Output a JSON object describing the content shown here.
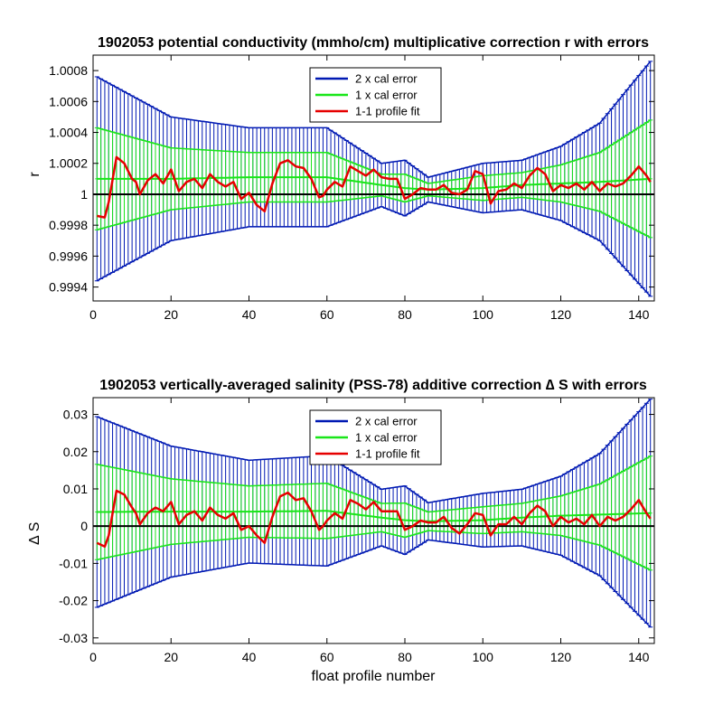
{
  "colors": {
    "cal2": "#0019b3",
    "cal1": "#19e619",
    "fit": "#e60000",
    "axis": "#000000"
  },
  "chart_data": [
    {
      "type": "line",
      "title": "1902053 potential conductivity (mmho/cm) multiplicative correction r with errors",
      "xlabel": "",
      "ylabel": "r",
      "xlim": [
        0,
        144
      ],
      "ylim": [
        0.99931,
        1.0009
      ],
      "xticks": [
        0,
        20,
        40,
        60,
        80,
        100,
        120,
        140
      ],
      "xtick_labels": [
        "0",
        "20",
        "40",
        "60",
        "80",
        "100",
        "120",
        "140"
      ],
      "yticks": [
        0.9994,
        0.9996,
        0.9998,
        1,
        1.0002,
        1.0004,
        1.0006,
        1.0008
      ],
      "ytick_labels": [
        "0.9994",
        "0.9996",
        "0.9998",
        "1",
        "1.0002",
        "1.0004",
        "1.0006",
        "1.0008"
      ],
      "zero_line": 1,
      "legend": {
        "entries": [
          "2 x cal error",
          "1 x cal error",
          "1-1 profile fit"
        ],
        "placement": "top-center"
      },
      "error_bands": {
        "x": [
          1,
          20,
          40,
          60,
          74,
          80,
          86,
          100,
          110,
          120,
          130,
          143
        ],
        "cal_fit": [
          1.0001,
          1.0001,
          1.00011,
          1.00011,
          1.00006,
          1.00004,
          1.00003,
          1.00004,
          1.00006,
          1.00007,
          1.00008,
          1.0001
        ],
        "error_1x": [
          0.00033,
          0.0002,
          0.00016,
          0.00016,
          7e-05,
          9e-05,
          4e-05,
          8e-05,
          8e-05,
          0.00012,
          0.00019,
          0.00038
        ],
        "error_2x": [
          0.00066,
          0.0004,
          0.00032,
          0.00032,
          0.00014,
          0.00018,
          8e-05,
          0.00016,
          0.00016,
          0.00024,
          0.00038,
          0.00076
        ]
      },
      "fit": {
        "x": [
          1,
          3,
          4,
          6,
          8,
          10,
          11,
          12,
          14,
          16,
          18,
          20,
          22,
          24,
          26,
          28,
          30,
          32,
          34,
          36,
          38,
          40,
          42,
          44,
          46,
          48,
          50,
          52,
          54,
          56,
          58,
          59,
          60,
          62,
          64,
          66,
          68,
          70,
          72,
          74,
          76,
          78,
          80,
          82,
          84,
          86,
          88,
          90,
          92,
          94,
          96,
          98,
          100,
          102,
          104,
          106,
          108,
          110,
          112,
          114,
          116,
          118,
          120,
          122,
          124,
          126,
          128,
          130,
          132,
          134,
          136,
          138,
          140,
          142,
          143
        ],
        "y": [
          0.99986,
          0.99985,
          0.99995,
          1.00024,
          1.0002,
          1.0001,
          1.00008,
          1.0,
          1.00009,
          1.00013,
          1.00007,
          1.00016,
          1.00002,
          1.00008,
          1.0001,
          1.00004,
          1.00013,
          1.00008,
          1.00005,
          1.00008,
          0.99997,
          1.00001,
          0.99993,
          0.99989,
          1.00007,
          1.0002,
          1.00022,
          1.00018,
          1.00017,
          1.0001,
          0.99998,
          0.99999,
          1.00003,
          1.00008,
          1.00005,
          1.00018,
          1.00015,
          1.00012,
          1.00016,
          1.00011,
          1.0001,
          1.0001,
          0.99997,
          1.0,
          1.00004,
          1.00003,
          1.00003,
          1.00006,
          1.00001,
          1.0,
          1.00003,
          1.00015,
          1.00013,
          0.99994,
          1.00002,
          1.00003,
          1.00007,
          1.00004,
          1.00012,
          1.00017,
          1.00013,
          1.00002,
          1.00006,
          1.00004,
          1.00007,
          1.00003,
          1.00008,
          1.00002,
          1.00007,
          1.00005,
          1.00007,
          1.00012,
          1.00018,
          1.00012,
          1.00008
        ]
      }
    },
    {
      "type": "line",
      "title": "1902053 vertically-averaged salinity (PSS-78) additive correction ∆ S with errors",
      "xlabel": "float profile number",
      "ylabel": "∆ S",
      "xlim": [
        0,
        144
      ],
      "ylim": [
        -0.0315,
        0.0345
      ],
      "xticks": [
        0,
        20,
        40,
        60,
        80,
        100,
        120,
        140
      ],
      "xtick_labels": [
        "0",
        "20",
        "40",
        "60",
        "80",
        "100",
        "120",
        "140"
      ],
      "yticks": [
        -0.03,
        -0.02,
        -0.01,
        0,
        0.01,
        0.02,
        0.03
      ],
      "ytick_labels": [
        "-0.03",
        "-0.02",
        "-0.01",
        "0",
        "0.01",
        "0.02",
        "0.03"
      ],
      "zero_line": 0,
      "legend": {
        "entries": [
          "2 x cal error",
          "1 x cal error",
          "1-1 profile fit"
        ],
        "placement": "top-center"
      },
      "error_bands": {
        "x": [
          1,
          20,
          40,
          60,
          74,
          80,
          86,
          100,
          110,
          120,
          130,
          143
        ],
        "cal_fit": [
          0.0038,
          0.0039,
          0.0039,
          0.0041,
          0.0023,
          0.0016,
          0.0013,
          0.0016,
          0.0023,
          0.0028,
          0.0031,
          0.0035
        ],
        "error_1x": [
          0.0128,
          0.0088,
          0.0069,
          0.0074,
          0.0038,
          0.0046,
          0.0025,
          0.0036,
          0.0038,
          0.0053,
          0.0082,
          0.0153
        ],
        "error_2x": [
          0.0256,
          0.0176,
          0.0138,
          0.0148,
          0.0076,
          0.0092,
          0.005,
          0.0072,
          0.0076,
          0.0106,
          0.0164,
          0.0306
        ]
      },
      "fit": {
        "x": [
          1,
          3,
          4,
          6,
          8,
          10,
          11,
          12,
          14,
          16,
          18,
          20,
          22,
          24,
          26,
          28,
          30,
          32,
          34,
          36,
          38,
          40,
          42,
          44,
          46,
          48,
          50,
          52,
          54,
          56,
          58,
          59,
          60,
          62,
          64,
          66,
          68,
          70,
          72,
          74,
          76,
          78,
          80,
          82,
          84,
          86,
          88,
          90,
          92,
          94,
          96,
          98,
          100,
          102,
          104,
          106,
          108,
          110,
          112,
          114,
          116,
          118,
          120,
          122,
          124,
          126,
          128,
          130,
          132,
          134,
          136,
          138,
          140,
          142,
          143
        ],
        "y": [
          -0.0045,
          -0.0055,
          -0.0025,
          0.0095,
          0.0085,
          0.005,
          0.0035,
          0.0005,
          0.0035,
          0.005,
          0.004,
          0.0065,
          0.0005,
          0.003,
          0.004,
          0.0015,
          0.005,
          0.003,
          0.002,
          0.0035,
          -0.001,
          0.0,
          -0.0025,
          -0.0045,
          0.0025,
          0.008,
          0.009,
          0.007,
          0.0075,
          0.004,
          -0.001,
          0.0,
          0.0015,
          0.0035,
          0.002,
          0.007,
          0.006,
          0.0045,
          0.0065,
          0.004,
          0.004,
          0.004,
          -0.001,
          0.0,
          0.0015,
          0.001,
          0.001,
          0.0025,
          -0.0005,
          -0.002,
          0.0005,
          0.0035,
          0.003,
          -0.0025,
          0.0005,
          0.0005,
          0.0025,
          0.0005,
          0.0035,
          0.0055,
          0.004,
          0.0,
          0.0025,
          0.001,
          0.002,
          0.0005,
          0.003,
          0.0,
          0.0025,
          0.0015,
          0.0025,
          0.0045,
          0.007,
          0.0035,
          0.002
        ]
      }
    }
  ]
}
